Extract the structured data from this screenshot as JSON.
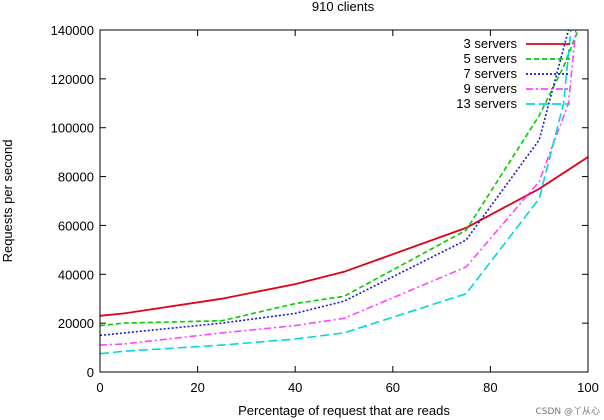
{
  "chart_data": {
    "type": "line",
    "title": "910 clients",
    "xlabel": "Percentage of request that are reads",
    "ylabel": "Requests per second",
    "xlim": [
      0,
      100
    ],
    "ylim": [
      0,
      140000
    ],
    "xticks": [
      0,
      20,
      40,
      60,
      80,
      100
    ],
    "yticks": [
      0,
      20000,
      40000,
      60000,
      80000,
      100000,
      120000,
      140000
    ],
    "grid": false,
    "legend_position": "top-right",
    "series": [
      {
        "name": "3 servers",
        "color": "#e0001a",
        "dash": "solid",
        "x": [
          0,
          5,
          25,
          40,
          50,
          75,
          90,
          100
        ],
        "y": [
          23000,
          24000,
          30000,
          36000,
          41000,
          59000,
          75000,
          88000
        ]
      },
      {
        "name": "5 servers",
        "color": "#00cc00",
        "dash": "dash",
        "x": [
          0,
          5,
          25,
          40,
          50,
          75,
          90,
          95,
          98
        ],
        "y": [
          19000,
          20000,
          21000,
          28000,
          31000,
          58000,
          105000,
          125000,
          140000
        ]
      },
      {
        "name": "7 servers",
        "color": "#1a1acc",
        "dash": "dot",
        "x": [
          0,
          5,
          25,
          40,
          50,
          75,
          90,
          94,
          96
        ],
        "y": [
          15000,
          16000,
          20000,
          24000,
          29000,
          54000,
          95000,
          125000,
          140000
        ]
      },
      {
        "name": "9 servers",
        "color": "#ff44ff",
        "dash": "dashdot",
        "x": [
          0,
          5,
          25,
          40,
          50,
          75,
          90,
          96,
          97.5
        ],
        "y": [
          11000,
          11500,
          16000,
          19000,
          22000,
          43000,
          78000,
          110000,
          140000
        ]
      },
      {
        "name": "13 servers",
        "color": "#00d8d8",
        "dash": "longdash",
        "x": [
          0,
          5,
          25,
          40,
          50,
          75,
          90,
          95,
          96.5
        ],
        "y": [
          7500,
          8500,
          11000,
          13500,
          16000,
          32000,
          71000,
          110000,
          140000
        ]
      }
    ]
  },
  "watermark": "CSDN @丫从心"
}
